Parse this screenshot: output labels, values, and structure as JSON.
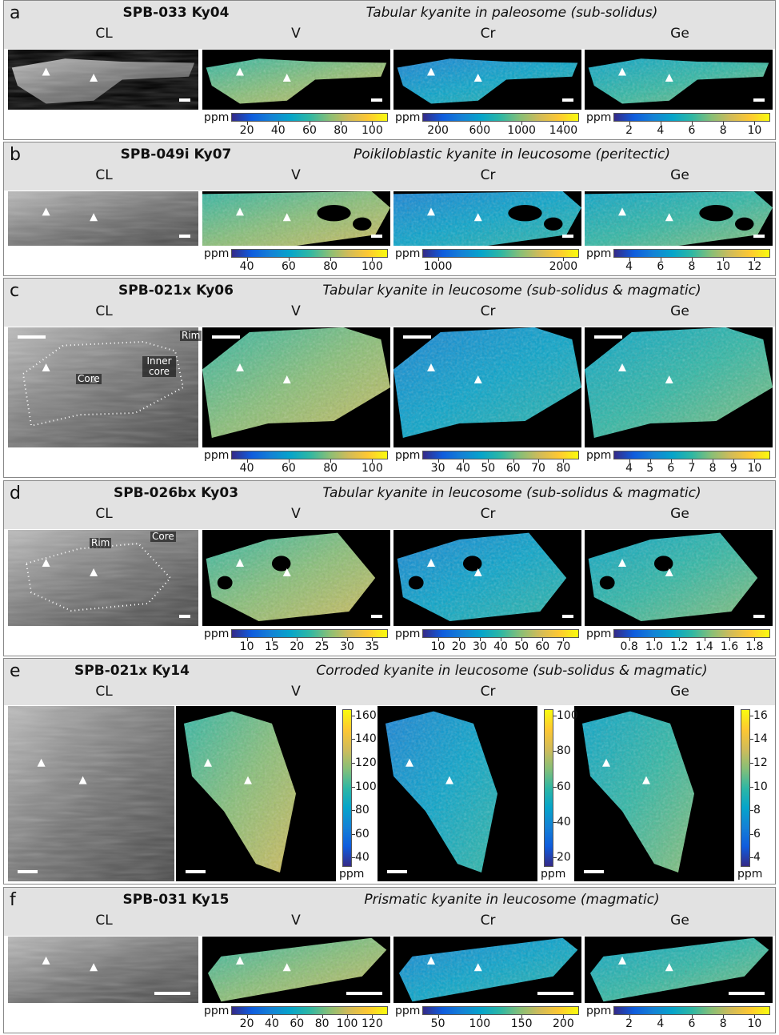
{
  "panels": [
    {
      "letter": "a",
      "sample": "SPB-033 Ky04",
      "description": "Tabular kyanite in paleosome (sub-solidus)",
      "columns": [
        "CL",
        "V",
        "Cr",
        "Ge"
      ],
      "colorbars": [
        {
          "unit": "ppm",
          "ticks": [
            20,
            40,
            60,
            80,
            100
          ]
        },
        {
          "unit": "ppm",
          "ticks": [
            200,
            600,
            1000,
            1400
          ]
        },
        {
          "unit": "ppm",
          "ticks": [
            2,
            4,
            6,
            8,
            10
          ]
        }
      ]
    },
    {
      "letter": "b",
      "sample": "SPB-049i Ky07",
      "description": "Poikiloblastic kyanite in leucosome (peritectic)",
      "columns": [
        "CL",
        "V",
        "Cr",
        "Ge"
      ],
      "colorbars": [
        {
          "unit": "ppm",
          "ticks": [
            40,
            60,
            80,
            100
          ]
        },
        {
          "unit": "ppm",
          "ticks": [
            1000,
            2000
          ]
        },
        {
          "unit": "ppm",
          "ticks": [
            4,
            6,
            8,
            10,
            12
          ]
        }
      ]
    },
    {
      "letter": "c",
      "sample": "SPB-021x Ky06",
      "description": "Tabular kyanite in leucosome (sub-solidus & magmatic)",
      "columns": [
        "CL",
        "V",
        "Cr",
        "Ge"
      ],
      "cl_labels": [
        "Rim",
        "Core",
        "Inner core"
      ],
      "colorbars": [
        {
          "unit": "ppm",
          "ticks": [
            40,
            60,
            80,
            100
          ]
        },
        {
          "unit": "ppm",
          "ticks": [
            30,
            40,
            50,
            60,
            70,
            80
          ]
        },
        {
          "unit": "ppm",
          "ticks": [
            4,
            5,
            6,
            7,
            8,
            9,
            10
          ]
        }
      ]
    },
    {
      "letter": "d",
      "sample": "SPB-026bx Ky03",
      "description": "Tabular kyanite in leucosome (sub-solidus & magmatic)",
      "columns": [
        "CL",
        "V",
        "Cr",
        "Ge"
      ],
      "cl_labels": [
        "Core",
        "Rim"
      ],
      "colorbars": [
        {
          "unit": "ppm",
          "ticks": [
            10,
            15,
            20,
            25,
            30,
            35
          ]
        },
        {
          "unit": "ppm",
          "ticks": [
            10,
            20,
            30,
            40,
            50,
            60,
            70
          ]
        },
        {
          "unit": "ppm",
          "ticks": [
            0.8,
            {
              "value": 1.0,
              "label": "1.0"
            },
            1.2,
            1.4,
            1.6,
            1.8
          ]
        }
      ]
    },
    {
      "letter": "e",
      "sample": "SPB-021x Ky14",
      "description": "Corroded kyanite in leucosome (sub-solidus & magmatic)",
      "columns": [
        "CL",
        "V",
        "Cr",
        "Ge"
      ],
      "colorbars": [
        {
          "unit": "ppm",
          "ticks": [
            40,
            60,
            80,
            100,
            120,
            140,
            160
          ]
        },
        {
          "unit": "ppm",
          "ticks": [
            20,
            40,
            60,
            80,
            100
          ]
        },
        {
          "unit": "ppm",
          "ticks": [
            4,
            6,
            8,
            10,
            12,
            14,
            16
          ]
        }
      ]
    },
    {
      "letter": "f",
      "sample": "SPB-031 Ky15",
      "description": "Prismatic kyanite in leucosome (magmatic)",
      "columns": [
        "CL",
        "V",
        "Cr",
        "Ge"
      ],
      "colorbars": [
        {
          "unit": "ppm",
          "ticks": [
            20,
            40,
            60,
            80,
            100,
            120
          ]
        },
        {
          "unit": "ppm",
          "ticks": [
            50,
            100,
            150,
            200
          ]
        },
        {
          "unit": "ppm",
          "ticks": [
            2,
            4,
            6,
            8,
            10
          ]
        }
      ]
    }
  ]
}
